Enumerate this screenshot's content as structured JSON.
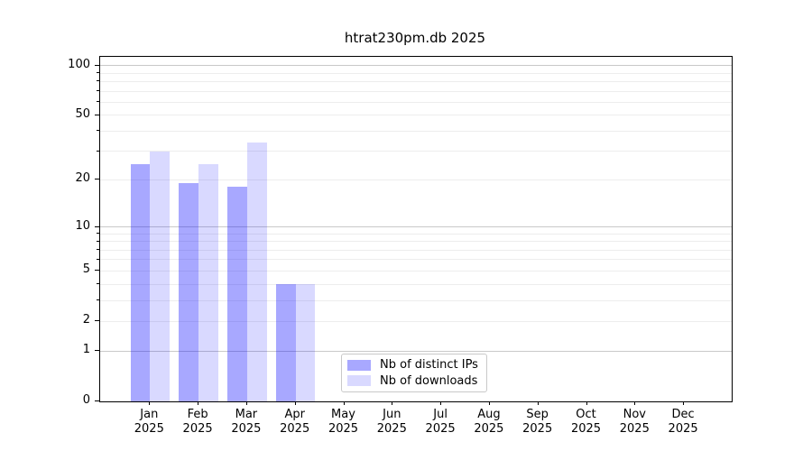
{
  "chart_data": {
    "type": "bar",
    "title": "htrat230pm.db 2025",
    "categories": [
      "Jan",
      "Feb",
      "Mar",
      "Apr",
      "May",
      "Jun",
      "Jul",
      "Aug",
      "Sep",
      "Oct",
      "Nov",
      "Dec"
    ],
    "category_year": "2025",
    "series": [
      {
        "name": "Nb of distinct IPs",
        "color": "#0000ff57",
        "values": [
          25,
          19,
          18,
          4,
          0,
          0,
          0,
          0,
          0,
          0,
          0,
          0
        ]
      },
      {
        "name": "Nb of downloads",
        "color": "#0000ff26",
        "values": [
          30,
          25,
          34,
          4,
          0,
          0,
          0,
          0,
          0,
          0,
          0,
          0
        ]
      }
    ],
    "y_axis": {
      "scale": "log1p",
      "ticks": [
        0,
        1,
        2,
        5,
        10,
        20,
        50,
        100
      ],
      "gridline_values": [
        1,
        2,
        3,
        4,
        5,
        6,
        7,
        8,
        9,
        10,
        20,
        30,
        40,
        50,
        60,
        70,
        80,
        90,
        100
      ],
      "major_gridlines": [
        1,
        10,
        100
      ],
      "ylim": [
        0,
        113
      ]
    },
    "x_axis": {
      "tick_label_lines": 2
    },
    "legend": {
      "position": "lower center-left",
      "entries": [
        "Nb of distinct IPs",
        "Nb of downloads"
      ]
    },
    "grid": true
  },
  "colors": {
    "background": "#ffffff",
    "minor_grid": "#ededed",
    "major_grid": "#c9c9c9",
    "spine": "#000000",
    "text": "#000000",
    "legend_border": "#c9c9c9",
    "series_ip": "#0000ff57",
    "series_dl": "#0000ff26"
  }
}
